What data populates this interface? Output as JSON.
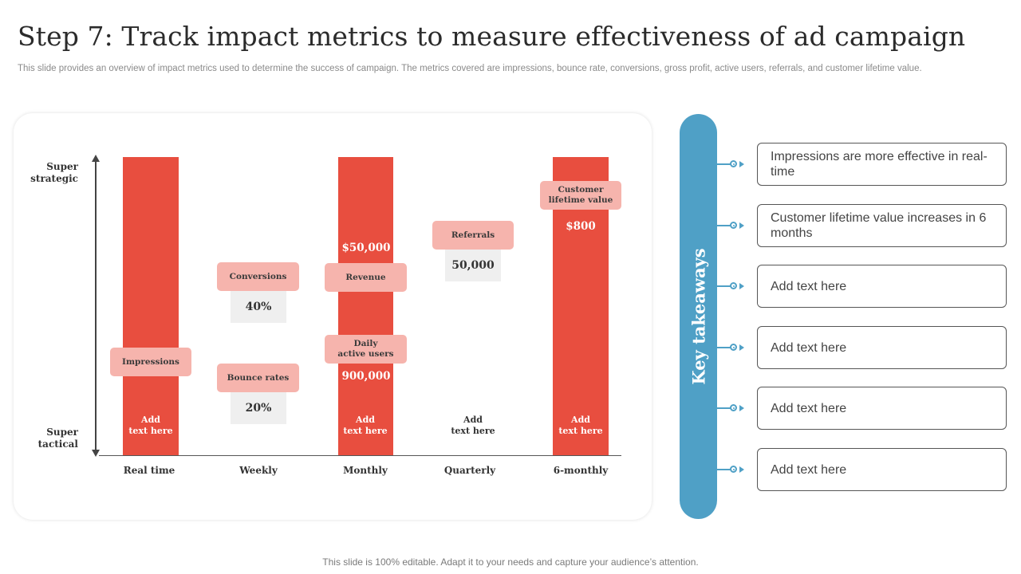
{
  "header": {
    "title": "Step 7: Track impact metrics to measure effectiveness of ad campaign",
    "subtitle": "This slide provides an overview of impact metrics used to determine the success of campaign. The metrics covered are impressions, bounce rate, conversions, gross profit, active users, referrals, and customer lifetime value."
  },
  "diagram": {
    "y_axis": {
      "top": "Super\nstrategic",
      "bottom": "Super\ntactical"
    },
    "columns": [
      {
        "label": "Real time",
        "has_bar": true,
        "add_text": "Add\ntext here"
      },
      {
        "label": "Weekly",
        "has_bar": false
      },
      {
        "label": "Monthly",
        "has_bar": true,
        "add_text": "Add\ntext here"
      },
      {
        "label": "Quarterly",
        "has_bar": false,
        "add_text": "Add\ntext here"
      },
      {
        "label": "6-monthly",
        "has_bar": true,
        "add_text": "Add\ntext here"
      }
    ],
    "metrics": {
      "impressions": "Impressions",
      "conversions": "Conversions",
      "conversions_value": "40%",
      "bounce_rates": "Bounce rates",
      "bounce_rates_value": "20%",
      "revenue": "Revenue",
      "revenue_value": "$50,000",
      "daily_active_users": "Daily\nactive users",
      "daily_active_users_value": "900,000",
      "referrals": "Referrals",
      "referrals_value": "50,000",
      "clv": "Customer\nlifetime value",
      "clv_value": "$800"
    }
  },
  "takeaways": {
    "heading": "Key takeaways",
    "items": [
      "Impressions are more effective in real-time",
      "Customer lifetime value increases in 6 months",
      "Add text here",
      "Add text here",
      "Add text here",
      "Add text here"
    ]
  },
  "footer": "This slide is 100% editable. Adapt it to your needs and capture your audience’s attention.",
  "colors": {
    "bar": "#e84e3f",
    "pill": "#f6b4ad",
    "value_box": "#efefef",
    "accent": "#4fa0c6"
  }
}
